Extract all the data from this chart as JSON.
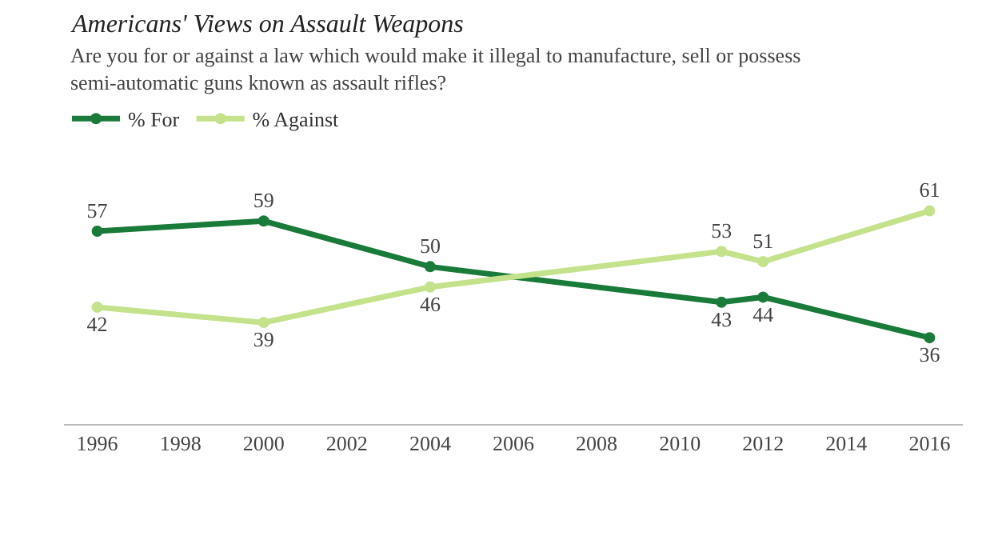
{
  "chart_data": {
    "type": "line",
    "title": "Americans' Views on Assault Weapons",
    "subtitle": "Are you for or against a law which would make it illegal to manufacture, sell or possess semi-automatic guns known as assault rifles?",
    "x": [
      1996,
      2000,
      2004,
      2011,
      2012,
      2016
    ],
    "series": [
      {
        "name": "% For",
        "color": "#1a7a3a",
        "values": [
          57,
          59,
          50,
          43,
          44,
          36
        ]
      },
      {
        "name": "% Against",
        "color": "#c3e28b",
        "values": [
          42,
          39,
          46,
          53,
          51,
          61
        ]
      }
    ],
    "xlim": [
      1995.2,
      2016.8
    ],
    "xticks": [
      1996,
      1998,
      2000,
      2002,
      2004,
      2006,
      2008,
      2010,
      2012,
      2014,
      2016
    ],
    "data_labels": true,
    "legend": "top left",
    "marker": "circle",
    "line_style": "solid",
    "tick_labels": "x"
  }
}
